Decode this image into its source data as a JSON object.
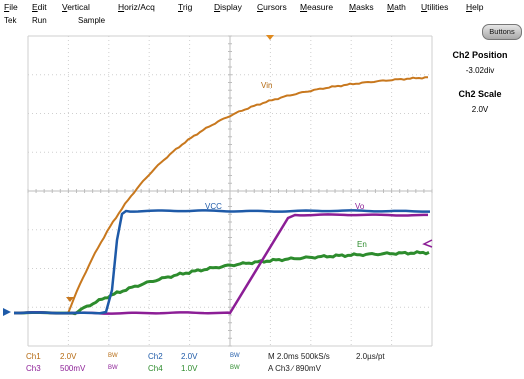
{
  "menu": [
    "File",
    "Edit",
    "Vertical",
    "Horiz/Acq",
    "Trig",
    "Display",
    "Cursors",
    "Measure",
    "Masks",
    "Math",
    "Utilities",
    "Help"
  ],
  "status": {
    "brand": "Tek",
    "state": "Run",
    "mode": "Sample"
  },
  "buttons_label": "Buttons",
  "side": {
    "pos_title": "Ch2 Position",
    "pos_value": "-3.02div",
    "scale_title": "Ch2 Scale",
    "scale_value": "2.0V"
  },
  "traces": {
    "vin": "Vin",
    "vcc": "VCC",
    "vo": "Vo",
    "en": "En"
  },
  "colors": {
    "ch1": "#c8781e",
    "ch2": "#1e5aa8",
    "ch3": "#8c1e96",
    "ch4": "#2d8c2d",
    "grid": "#cfcfcf"
  },
  "footer": {
    "ch1_label": "Ch1",
    "ch1_scale": "2.0V",
    "ch2_label": "Ch2",
    "ch2_scale": "2.0V",
    "ch3_label": "Ch3",
    "ch3_scale": "500mV",
    "ch4_label": "Ch4",
    "ch4_scale": "1.0V",
    "bw": "BW",
    "horizontal": "M 2.0ms 500kS/s",
    "resolution": "2.0µs/pt",
    "trigger": "A  Ch3  ∕  890mV"
  }
}
